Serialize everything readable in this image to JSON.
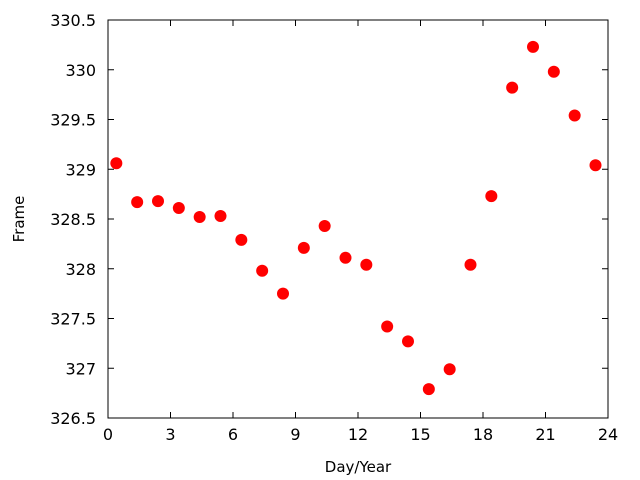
{
  "chart_data": {
    "type": "scatter",
    "title": "",
    "xlabel": "Day/Year",
    "ylabel": "Frame",
    "xlim": [
      0,
      24
    ],
    "ylim": [
      326.5,
      330.5
    ],
    "xticks": [
      "0",
      "3",
      "6",
      "9",
      "12",
      "15",
      "18",
      "21",
      "24"
    ],
    "yticks": [
      "326.5",
      "327",
      "327.5",
      "328",
      "328.5",
      "329",
      "329.5",
      "330",
      "330.5"
    ],
    "grid": false,
    "legend": "none",
    "marker_color": "#ff0000",
    "marker": "filled-circle",
    "series": [
      {
        "points": [
          [
            0.4,
            329.06
          ],
          [
            1.4,
            328.67
          ],
          [
            2.4,
            328.68
          ],
          [
            3.4,
            328.61
          ],
          [
            4.4,
            328.52
          ],
          [
            5.4,
            328.53
          ],
          [
            6.4,
            328.29
          ],
          [
            7.4,
            327.98
          ],
          [
            8.4,
            327.75
          ],
          [
            9.4,
            328.21
          ],
          [
            10.4,
            328.43
          ],
          [
            11.4,
            328.11
          ],
          [
            12.4,
            328.04
          ],
          [
            13.4,
            327.42
          ],
          [
            14.4,
            327.27
          ],
          [
            15.4,
            326.79
          ],
          [
            16.4,
            326.99
          ],
          [
            17.4,
            328.04
          ],
          [
            18.4,
            328.73
          ],
          [
            19.4,
            329.82
          ],
          [
            20.4,
            330.23
          ],
          [
            21.4,
            329.98
          ],
          [
            22.4,
            329.54
          ],
          [
            23.4,
            329.04
          ]
        ]
      }
    ]
  }
}
